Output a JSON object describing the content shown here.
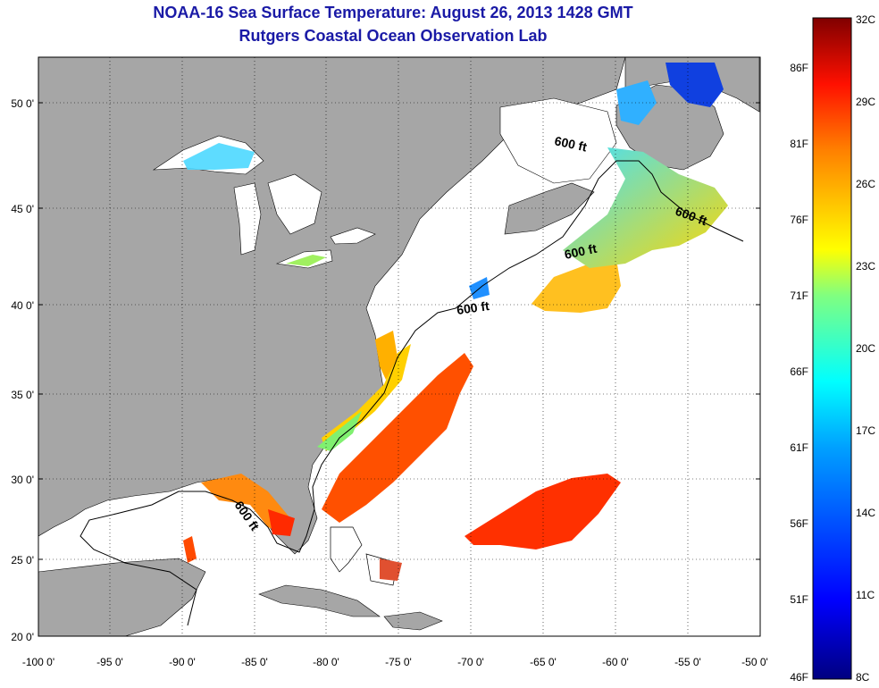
{
  "title": "NOAA-16 Sea Surface Temperature:  August 26, 2013 1428 GMT",
  "subtitle": "Rutgers Coastal Ocean Observation Lab",
  "x_ticks": [
    "-100 0'",
    "-95 0'",
    "-90 0'",
    "-85 0'",
    "-80 0'",
    "-75 0'",
    "-70 0'",
    "-65 0'",
    "-60 0'",
    "-55 0'",
    "-50 0'"
  ],
  "y_ticks": [
    "50 0'",
    "45 0'",
    "40 0'",
    "35 0'",
    "30 0'",
    "25 0'",
    "20 0'"
  ],
  "lon_range": [
    -100,
    -50
  ],
  "lat_range": [
    20,
    52.5
  ],
  "contour_labels": [
    "600 ft",
    "600 ft",
    "600 ft",
    "600 ft",
    "600 ft"
  ],
  "colorbar": {
    "fahrenheit": [
      "86F",
      "81F",
      "76F",
      "71F",
      "66F",
      "61F",
      "56F",
      "51F",
      "46F"
    ],
    "celsius": [
      "32C",
      "29C",
      "26C",
      "23C",
      "20C",
      "17C",
      "14C",
      "11C",
      "8C"
    ],
    "range_c": [
      8,
      32
    ],
    "colors": [
      "#000080",
      "#0000ff",
      "#0080ff",
      "#00ffff",
      "#80ff80",
      "#ffff00",
      "#ff8000",
      "#ff0000",
      "#800000"
    ]
  },
  "land_color": "#a6a6a6"
}
